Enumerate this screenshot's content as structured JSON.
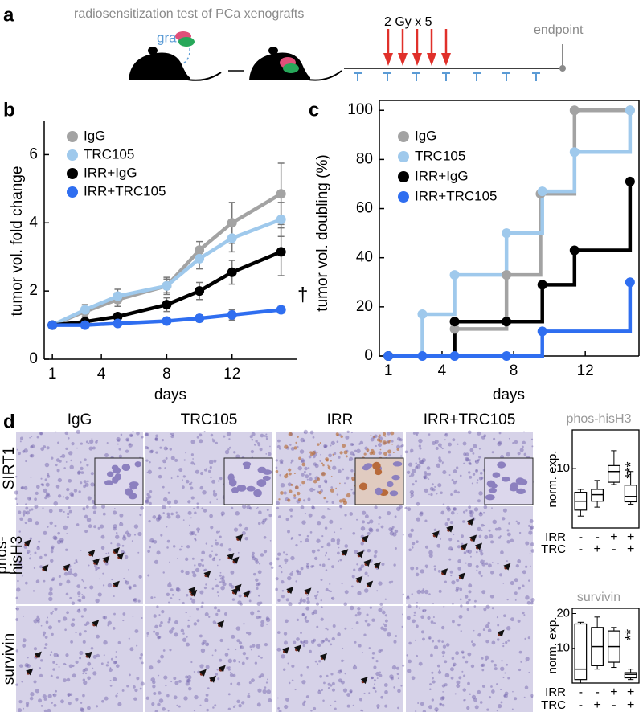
{
  "panel_labels": [
    "a",
    "b",
    "c",
    "d"
  ],
  "schematic": {
    "title": "radiosensitization test of PCa xenografts",
    "graft_label": "graft",
    "dose_label": "2 Gy x 5",
    "endpoint_label": "endpoint"
  },
  "ihc": {
    "columns": [
      "IgG",
      "TRC105",
      "IRR",
      "IRR+TRC105"
    ],
    "rows": [
      [
        "SIRT1"
      ],
      [
        "phos-",
        "hisH3"
      ],
      [
        "survivin"
      ]
    ]
  },
  "chart_data": [
    {
      "type": "line",
      "xlabel": "days",
      "ylabel": "tumor vol. fold change",
      "x": [
        1,
        3,
        5,
        8,
        10,
        12,
        15
      ],
      "xlim": [
        0.5,
        16
      ],
      "xticks": [
        1,
        4,
        8,
        12
      ],
      "ylim": [
        0,
        7
      ],
      "yticks": [
        0,
        2,
        4,
        6
      ],
      "legend": "upper left",
      "annotation": "†",
      "series": [
        {
          "name": "IgG",
          "color": "#a3a3a3",
          "values": [
            1,
            1.4,
            1.75,
            2.15,
            3.2,
            4.0,
            4.85
          ],
          "errors": [
            0.05,
            0.15,
            0.2,
            0.25,
            0.25,
            0.6,
            0.9
          ]
        },
        {
          "name": "TRC105",
          "color": "#9fc9ec",
          "values": [
            1,
            1.45,
            1.85,
            2.15,
            2.95,
            3.55,
            4.1
          ],
          "errors": [
            0.05,
            0.15,
            0.2,
            0.2,
            0.3,
            0.4,
            0.5
          ]
        },
        {
          "name": "IRR+IgG",
          "color": "#000000",
          "values": [
            1,
            1.1,
            1.25,
            1.6,
            2.0,
            2.55,
            3.15
          ],
          "errors": [
            0.05,
            0.1,
            0.1,
            0.2,
            0.25,
            0.35,
            0.7
          ]
        },
        {
          "name": "IRR+TRC105",
          "color": "#2f6ef0",
          "values": [
            1,
            1.0,
            1.05,
            1.12,
            1.2,
            1.3,
            1.45
          ],
          "errors": [
            0.05,
            0.05,
            0.05,
            0.1,
            0.1,
            0.15,
            0.1
          ]
        }
      ]
    },
    {
      "type": "step",
      "xlabel": "days",
      "ylabel": "tumor vol. doubling (%)",
      "xlim": [
        0.5,
        15
      ],
      "xticks": [
        1,
        4,
        8,
        12
      ],
      "ylim": [
        0,
        104
      ],
      "yticks": [
        0,
        20,
        40,
        60,
        80,
        100
      ],
      "legend": "upper left",
      "series": [
        {
          "name": "IgG",
          "color": "#a3a3a3",
          "x": [
            1,
            4.7,
            7.6,
            9.5,
            11.4,
            14.5
          ],
          "values": [
            0,
            11,
            33,
            66,
            100,
            100
          ]
        },
        {
          "name": "TRC105",
          "color": "#9fc9ec",
          "x": [
            1,
            2.9,
            4.7,
            7.6,
            9.6,
            11.4,
            14.5
          ],
          "values": [
            0,
            17,
            33,
            50,
            67,
            83,
            100
          ]
        },
        {
          "name": "IRR+IgG",
          "color": "#000000",
          "x": [
            1,
            4.7,
            7.6,
            9.6,
            11.4,
            14.5
          ],
          "values": [
            0,
            14,
            14,
            29,
            43,
            71
          ]
        },
        {
          "name": "IRR+TRC105",
          "color": "#2f6ef0",
          "x": [
            1,
            2.9,
            4.7,
            7.6,
            9.6,
            14.5
          ],
          "values": [
            0,
            0,
            0,
            0,
            10,
            30
          ]
        }
      ]
    },
    {
      "type": "box",
      "title": "phos-hisH3",
      "ylabel": "norm. exp.",
      "ylim": [
        0,
        16.5
      ],
      "yticks": [
        10
      ],
      "annotation": "***",
      "groups": [
        {
          "name": "IRR",
          "labels": [
            "-",
            "-",
            "+",
            "+"
          ]
        },
        {
          "name": "TRC",
          "labels": [
            "-",
            "+",
            "-",
            "+"
          ]
        }
      ],
      "boxes": [
        {
          "min": 2.0,
          "q1": 3.0,
          "median": 4.5,
          "q3": 6.0,
          "max": 6.5
        },
        {
          "min": 3.5,
          "q1": 4.5,
          "median": 5.6,
          "q3": 6.5,
          "max": 8.0
        },
        {
          "min": 7.3,
          "q1": 7.7,
          "median": 9.5,
          "q3": 10.5,
          "max": 13.0
        },
        {
          "min": 4.0,
          "q1": 4.4,
          "median": 5.3,
          "q3": 7.2,
          "max": 9.5
        }
      ]
    },
    {
      "type": "box",
      "title": "survivin",
      "ylabel": "norm. exp.",
      "ylim": [
        0,
        21.5
      ],
      "yticks": [
        10,
        20
      ],
      "annotation": "**",
      "groups": [
        {
          "name": "IRR",
          "labels": [
            "-",
            "-",
            "+",
            "+"
          ]
        },
        {
          "name": "TRC",
          "labels": [
            "-",
            "+",
            "-",
            "+"
          ]
        }
      ],
      "boxes": [
        {
          "min": 0,
          "q1": 1,
          "median": 4,
          "q3": 17,
          "max": 17.5
        },
        {
          "min": 4,
          "q1": 5,
          "median": 10.5,
          "q3": 16,
          "max": 19
        },
        {
          "min": 4.5,
          "q1": 6,
          "median": 10.5,
          "q3": 15,
          "max": 16
        },
        {
          "min": 1,
          "q1": 1.5,
          "median": 2.5,
          "q3": 3,
          "max": 4
        }
      ]
    }
  ]
}
